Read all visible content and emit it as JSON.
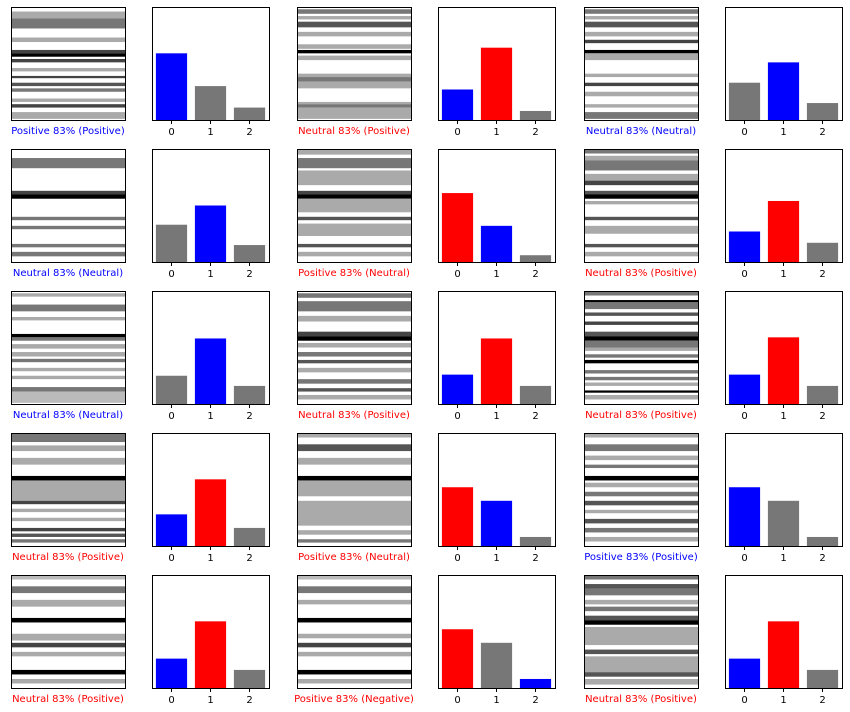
{
  "colors": {
    "correct": "#0000ff",
    "wrong": "#ff0000",
    "bar_default": "#777777",
    "frame": "#000000",
    "background": "#ffffff"
  },
  "chart_data": {
    "type": "bar",
    "categories": [
      "0",
      "1",
      "2"
    ],
    "ylim": [
      0,
      1
    ],
    "grid": false,
    "panels": [
      {
        "caption": "Positive 83% (Positive)",
        "correct": true,
        "pred": 0,
        "true": 0,
        "values": [
          0.59,
          0.3,
          0.11
        ],
        "stripes": [
          [
            0.04,
            0.1,
            "#aaa"
          ],
          [
            0.1,
            0.19,
            "#777"
          ],
          [
            0.27,
            0.31,
            "#aaa"
          ],
          [
            0.38,
            0.41,
            "#444"
          ],
          [
            0.41,
            0.44,
            "#000"
          ],
          [
            0.46,
            0.49,
            "#444"
          ],
          [
            0.54,
            0.57,
            "#aaa"
          ],
          [
            0.61,
            0.63,
            "#444"
          ],
          [
            0.67,
            0.7,
            "#555"
          ],
          [
            0.72,
            0.75,
            "#777"
          ],
          [
            0.81,
            0.84,
            "#aaa"
          ],
          [
            0.86,
            0.89,
            "#444"
          ],
          [
            0.93,
            0.99,
            "#aaa"
          ]
        ]
      },
      {
        "caption": "Neutral 83% (Positive)",
        "correct": false,
        "pred": 1,
        "true": 0,
        "values": [
          0.27,
          0.64,
          0.08
        ],
        "stripes": [
          [
            0.02,
            0.06,
            "#777"
          ],
          [
            0.08,
            0.11,
            "#aaa"
          ],
          [
            0.13,
            0.18,
            "#555"
          ],
          [
            0.22,
            0.26,
            "#aaa"
          ],
          [
            0.33,
            0.37,
            "#aaa"
          ],
          [
            0.38,
            0.41,
            "#000"
          ],
          [
            0.43,
            0.47,
            "#aaa"
          ],
          [
            0.59,
            0.62,
            "#aaa"
          ],
          [
            0.62,
            0.66,
            "#777"
          ],
          [
            0.66,
            0.72,
            "#aaa"
          ],
          [
            0.84,
            0.86,
            "#aaa"
          ],
          [
            0.86,
            0.89,
            "#777"
          ],
          [
            0.89,
            0.99,
            "#aaa"
          ]
        ]
      },
      {
        "caption": "Neutral 83% (Neutral)",
        "correct": true,
        "pred": 1,
        "true": 1,
        "values": [
          0.33,
          0.51,
          0.15
        ],
        "stripes": [
          [
            0.02,
            0.06,
            "#777"
          ],
          [
            0.08,
            0.11,
            "#aaa"
          ],
          [
            0.13,
            0.18,
            "#555"
          ],
          [
            0.22,
            0.26,
            "#aaa"
          ],
          [
            0.29,
            0.32,
            "#444"
          ],
          [
            0.38,
            0.41,
            "#000"
          ],
          [
            0.41,
            0.47,
            "#aaa"
          ],
          [
            0.59,
            0.62,
            "#aaa"
          ],
          [
            0.67,
            0.7,
            "#444"
          ],
          [
            0.75,
            0.79,
            "#aaa"
          ],
          [
            0.86,
            0.89,
            "#aaa"
          ],
          [
            0.93,
            0.99,
            "#777"
          ]
        ]
      },
      {
        "caption": "Neutral 83% (Neutral)",
        "correct": true,
        "pred": 1,
        "true": 1,
        "values": [
          0.33,
          0.5,
          0.15
        ],
        "stripes": [
          [
            0.08,
            0.17,
            "#777"
          ],
          [
            0.37,
            0.4,
            "#444"
          ],
          [
            0.4,
            0.44,
            "#000"
          ],
          [
            0.6,
            0.63,
            "#777"
          ],
          [
            0.68,
            0.71,
            "#777"
          ],
          [
            0.84,
            0.87,
            "#777"
          ],
          [
            0.91,
            0.95,
            "#777"
          ]
        ]
      },
      {
        "caption": "Positive 83% (Neutral)",
        "correct": false,
        "pred": 0,
        "true": 1,
        "values": [
          0.61,
          0.32,
          0.06
        ],
        "stripes": [
          [
            0.0,
            0.05,
            "#aaa"
          ],
          [
            0.08,
            0.17,
            "#777"
          ],
          [
            0.19,
            0.32,
            "#aaa"
          ],
          [
            0.37,
            0.4,
            "#444"
          ],
          [
            0.4,
            0.44,
            "#000"
          ],
          [
            0.44,
            0.56,
            "#aaa"
          ],
          [
            0.6,
            0.63,
            "#555"
          ],
          [
            0.66,
            0.77,
            "#aaa"
          ],
          [
            0.84,
            0.87,
            "#555"
          ],
          [
            0.91,
            0.95,
            "#aaa"
          ]
        ]
      },
      {
        "caption": "Neutral 83% (Positive)",
        "correct": false,
        "pred": 1,
        "true": 0,
        "values": [
          0.27,
          0.54,
          0.17
        ],
        "stripes": [
          [
            0.0,
            0.04,
            "#777"
          ],
          [
            0.06,
            0.1,
            "#aaa"
          ],
          [
            0.1,
            0.19,
            "#777"
          ],
          [
            0.22,
            0.28,
            "#aaa"
          ],
          [
            0.28,
            0.32,
            "#444"
          ],
          [
            0.37,
            0.4,
            "#555"
          ],
          [
            0.4,
            0.44,
            "#000"
          ],
          [
            0.46,
            0.49,
            "#aaa"
          ],
          [
            0.6,
            0.63,
            "#555"
          ],
          [
            0.68,
            0.75,
            "#aaa"
          ],
          [
            0.84,
            0.87,
            "#555"
          ],
          [
            0.91,
            0.95,
            "#aaa"
          ]
        ]
      },
      {
        "caption": "Neutral 83% (Neutral)",
        "correct": true,
        "pred": 1,
        "true": 1,
        "values": [
          0.25,
          0.58,
          0.16
        ],
        "stripes": [
          [
            0.02,
            0.05,
            "#aaa"
          ],
          [
            0.12,
            0.18,
            "#777"
          ],
          [
            0.23,
            0.26,
            "#aaa"
          ],
          [
            0.38,
            0.41,
            "#000"
          ],
          [
            0.41,
            0.44,
            "#777"
          ],
          [
            0.47,
            0.51,
            "#aaa"
          ],
          [
            0.54,
            0.58,
            "#aaa"
          ],
          [
            0.6,
            0.63,
            "#777"
          ],
          [
            0.68,
            0.71,
            "#aaa"
          ],
          [
            0.75,
            0.78,
            "#aaa"
          ],
          [
            0.85,
            0.89,
            "#777"
          ],
          [
            0.89,
            0.99,
            "#bbb"
          ]
        ]
      },
      {
        "caption": "Neutral 83% (Positive)",
        "correct": false,
        "pred": 1,
        "true": 0,
        "values": [
          0.26,
          0.58,
          0.16
        ],
        "stripes": [
          [
            0.02,
            0.06,
            "#777"
          ],
          [
            0.09,
            0.18,
            "#777"
          ],
          [
            0.22,
            0.27,
            "#aaa"
          ],
          [
            0.36,
            0.4,
            "#444"
          ],
          [
            0.4,
            0.44,
            "#000"
          ],
          [
            0.46,
            0.5,
            "#aaa"
          ],
          [
            0.54,
            0.58,
            "#777"
          ],
          [
            0.61,
            0.64,
            "#555"
          ],
          [
            0.68,
            0.72,
            "#aaa"
          ],
          [
            0.78,
            0.82,
            "#777"
          ],
          [
            0.86,
            0.89,
            "#555"
          ],
          [
            0.92,
            0.96,
            "#aaa"
          ]
        ]
      },
      {
        "caption": "Neutral 83% (Positive)",
        "correct": false,
        "pred": 1,
        "true": 0,
        "values": [
          0.26,
          0.59,
          0.16
        ],
        "stripes": [
          [
            0.0,
            0.04,
            "#777"
          ],
          [
            0.08,
            0.1,
            "#000"
          ],
          [
            0.1,
            0.16,
            "#777"
          ],
          [
            0.19,
            0.22,
            "#555"
          ],
          [
            0.27,
            0.3,
            "#444"
          ],
          [
            0.36,
            0.4,
            "#555"
          ],
          [
            0.4,
            0.44,
            "#000"
          ],
          [
            0.44,
            0.5,
            "#777"
          ],
          [
            0.5,
            0.53,
            "#aaa"
          ],
          [
            0.56,
            0.59,
            "#777"
          ],
          [
            0.61,
            0.64,
            "#000"
          ],
          [
            0.7,
            0.73,
            "#777"
          ],
          [
            0.76,
            0.79,
            "#777"
          ],
          [
            0.81,
            0.84,
            "#aaa"
          ],
          [
            0.88,
            0.9,
            "#000"
          ],
          [
            0.92,
            0.96,
            "#aaa"
          ]
        ]
      },
      {
        "caption": "Neutral 83% (Positive)",
        "correct": false,
        "pred": 1,
        "true": 0,
        "values": [
          0.28,
          0.59,
          0.16
        ],
        "stripes": [
          [
            0.0,
            0.08,
            "#777"
          ],
          [
            0.11,
            0.16,
            "#aaa"
          ],
          [
            0.22,
            0.28,
            "#aaa"
          ],
          [
            0.38,
            0.42,
            "#000"
          ],
          [
            0.42,
            0.6,
            "#aaa"
          ],
          [
            0.6,
            0.63,
            "#444"
          ],
          [
            0.67,
            0.7,
            "#aaa"
          ],
          [
            0.75,
            0.78,
            "#aaa"
          ],
          [
            0.84,
            0.87,
            "#444"
          ],
          [
            0.89,
            0.92,
            "#555"
          ],
          [
            0.94,
            0.97,
            "#777"
          ]
        ]
      },
      {
        "caption": "Positive 83% (Neutral)",
        "correct": false,
        "pred": 0,
        "true": 1,
        "values": [
          0.52,
          0.4,
          0.08
        ],
        "stripes": [
          [
            0.0,
            0.04,
            "#aaa"
          ],
          [
            0.1,
            0.16,
            "#555"
          ],
          [
            0.22,
            0.28,
            "#aaa"
          ],
          [
            0.38,
            0.42,
            "#000"
          ],
          [
            0.42,
            0.56,
            "#aaa"
          ],
          [
            0.6,
            0.82,
            "#aaa"
          ],
          [
            0.86,
            0.9,
            "#aaa"
          ],
          [
            0.94,
            0.97,
            "#777"
          ]
        ]
      },
      {
        "caption": "Positive 83% (Positive)",
        "correct": true,
        "pred": 0,
        "true": 0,
        "values": [
          0.52,
          0.4,
          0.08
        ],
        "stripes": [
          [
            0.0,
            0.04,
            "#aaa"
          ],
          [
            0.1,
            0.16,
            "#777"
          ],
          [
            0.2,
            0.24,
            "#aaa"
          ],
          [
            0.28,
            0.31,
            "#777"
          ],
          [
            0.38,
            0.42,
            "#000"
          ],
          [
            0.44,
            0.48,
            "#aaa"
          ],
          [
            0.52,
            0.56,
            "#777"
          ],
          [
            0.6,
            0.64,
            "#555"
          ],
          [
            0.68,
            0.71,
            "#aaa"
          ],
          [
            0.76,
            0.8,
            "#555"
          ],
          [
            0.84,
            0.88,
            "#777"
          ],
          [
            0.92,
            0.96,
            "#aaa"
          ]
        ]
      },
      {
        "caption": "Neutral 83% (Positive)",
        "correct": false,
        "pred": 1,
        "true": 0,
        "values": [
          0.26,
          0.59,
          0.16
        ],
        "stripes": [
          [
            0.0,
            0.04,
            "#bbb"
          ],
          [
            0.1,
            0.16,
            "#777"
          ],
          [
            0.22,
            0.28,
            "#aaa"
          ],
          [
            0.38,
            0.42,
            "#000"
          ],
          [
            0.52,
            0.58,
            "#aaa"
          ],
          [
            0.6,
            0.64,
            "#444"
          ],
          [
            0.68,
            0.72,
            "#aaa"
          ],
          [
            0.84,
            0.88,
            "#000"
          ],
          [
            0.92,
            0.96,
            "#aaa"
          ]
        ]
      },
      {
        "caption": "Positive 83% (Negative)",
        "correct": false,
        "pred": 0,
        "true": 2,
        "values": [
          0.52,
          0.4,
          0.08
        ],
        "stripes": [
          [
            0.0,
            0.04,
            "#bbb"
          ],
          [
            0.1,
            0.16,
            "#777"
          ],
          [
            0.22,
            0.26,
            "#aaa"
          ],
          [
            0.38,
            0.42,
            "#000"
          ],
          [
            0.52,
            0.56,
            "#aaa"
          ],
          [
            0.6,
            0.64,
            "#444"
          ],
          [
            0.68,
            0.72,
            "#aaa"
          ],
          [
            0.84,
            0.88,
            "#000"
          ],
          [
            0.92,
            0.96,
            "#aaa"
          ]
        ]
      },
      {
        "caption": "Neutral 83% (Positive)",
        "correct": false,
        "pred": 1,
        "true": 0,
        "values": [
          0.26,
          0.59,
          0.16
        ],
        "stripes": [
          [
            0.0,
            0.04,
            "#777"
          ],
          [
            0.08,
            0.12,
            "#555"
          ],
          [
            0.12,
            0.18,
            "#777"
          ],
          [
            0.22,
            0.26,
            "#aaa"
          ],
          [
            0.28,
            0.32,
            "#777"
          ],
          [
            0.36,
            0.4,
            "#555"
          ],
          [
            0.4,
            0.44,
            "#000"
          ],
          [
            0.46,
            0.62,
            "#aaa"
          ],
          [
            0.66,
            0.7,
            "#555"
          ],
          [
            0.72,
            0.86,
            "#aaa"
          ],
          [
            0.86,
            0.9,
            "#555"
          ],
          [
            0.92,
            0.97,
            "#aaa"
          ]
        ]
      }
    ]
  }
}
